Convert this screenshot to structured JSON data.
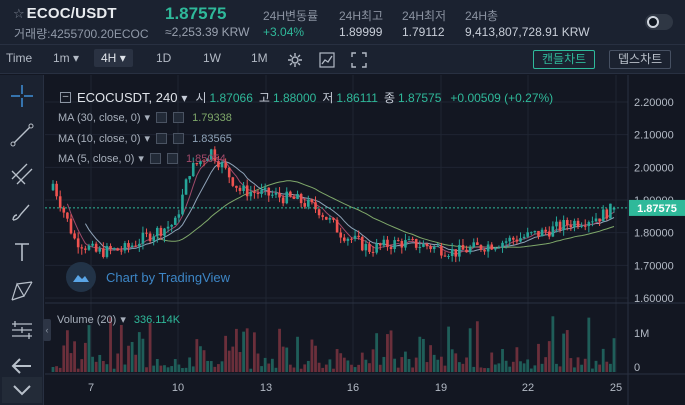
{
  "header": {
    "star": "☆",
    "pair": "ECOC/USDT",
    "volume": "거래량:4255700.20ECOC",
    "price": "1.87575",
    "price_krw": "≈2,253.39 KRW",
    "stats": [
      {
        "label": "24H변동률",
        "value": "+3.04%"
      },
      {
        "label": "24H최고",
        "value": "1.89999"
      },
      {
        "label": "24H최저",
        "value": "1.79112"
      },
      {
        "label": "24H총",
        "value": "9,413,807,728.91 KRW"
      }
    ]
  },
  "toolbar": {
    "time_label": "Time",
    "interval_1m": "1m",
    "interval_4h": "4H",
    "interval_1d": "1D",
    "interval_1w": "1W",
    "interval_1M": "1M",
    "candle_chart": "캔들차트",
    "depth_chart": "뎁스차트"
  },
  "legend": {
    "symbol": "ECOCUSDT, 240",
    "o_label": "시",
    "o": "1.87066",
    "h_label": "고",
    "h": "1.88000",
    "l_label": "저",
    "l": "1.86111",
    "c_label": "종",
    "c": "1.87575",
    "change": "+0.00509 (+0.27%)",
    "ma": [
      {
        "label": "MA (30, close, 0)",
        "value": "1.79338",
        "color": "#7fa86a"
      },
      {
        "label": "MA (10, close, 0)",
        "value": "1.83565",
        "color": "#8fa3b8"
      },
      {
        "label": "MA (5, close, 0)",
        "value": "1.85054",
        "color": "#a04a6a"
      }
    ],
    "volume_label": "Volume (20)",
    "volume_value": "336.114K"
  },
  "watermark": "Chart by TradingView",
  "colors": {
    "up": "#26a69a",
    "down": "#ef5350",
    "accent": "#2fb99a",
    "bg": "#131722"
  },
  "chart_data": {
    "type": "candlestick",
    "y_ticks": [
      "2.20000",
      "2.10000",
      "2.00000",
      "1.90000",
      "1.80000",
      "1.70000",
      "1.60000"
    ],
    "ylim": [
      1.6,
      2.2
    ],
    "x_ticks": [
      "7",
      "10",
      "13",
      "16",
      "19",
      "22",
      "25"
    ],
    "last_price_label": "1.87575",
    "last_price": 1.87575,
    "vol_ticks": [
      "1M",
      "0"
    ],
    "vol_max": 1600000
  }
}
